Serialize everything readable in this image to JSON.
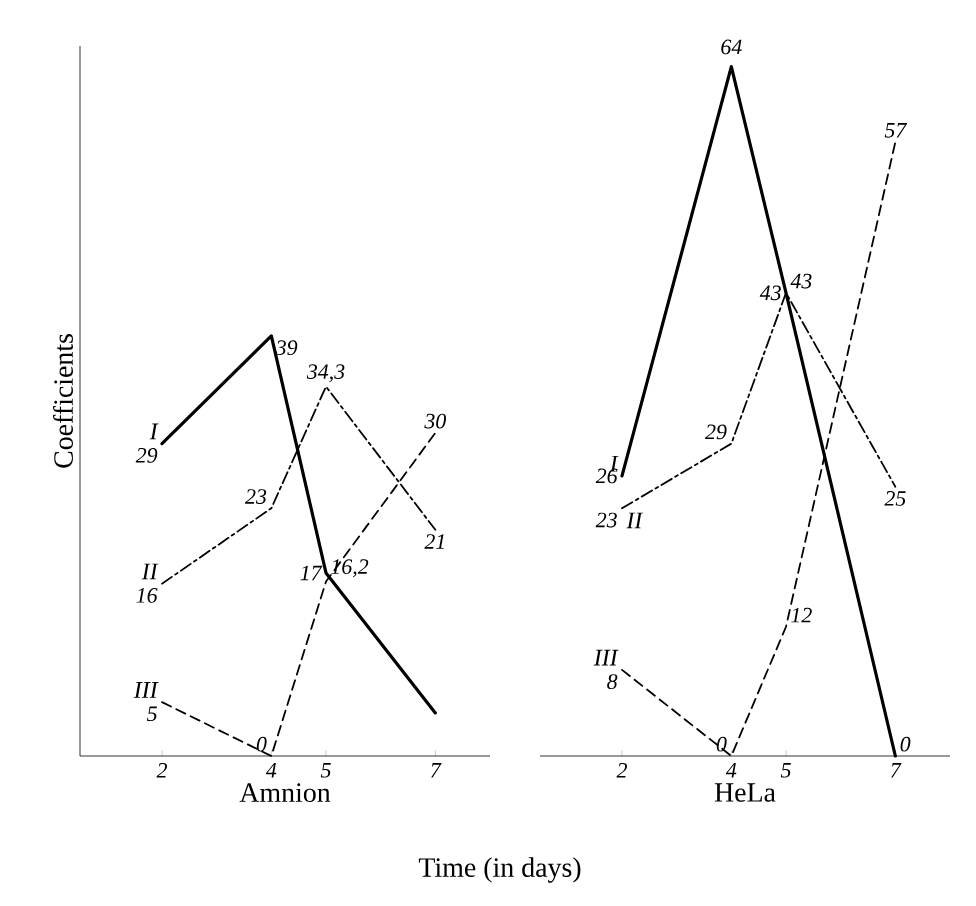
{
  "chart_data": [
    {
      "type": "line",
      "xlabel": "Amnion",
      "ylabel": "Coefficients",
      "x": [
        2,
        4,
        5,
        7
      ],
      "xlim": [
        0.5,
        8
      ],
      "xticks": [
        2,
        4,
        5,
        7
      ],
      "tick_labels": "x",
      "grid": false,
      "legend": false,
      "marker": "none",
      "annotations": [
        "Time (in days)"
      ],
      "series": [
        {
          "name": "I",
          "color": "#000000",
          "line_style": "solid",
          "values": [
            29,
            39,
            17,
            4
          ],
          "value_labels": [
            "29",
            "39",
            "17",
            null
          ]
        },
        {
          "name": "II",
          "color": "#000000",
          "line_style": "dashdot",
          "values": [
            16,
            23,
            34.3,
            21
          ],
          "value_labels": [
            "16",
            "23",
            "34,3",
            "21"
          ]
        },
        {
          "name": "III",
          "color": "#000000",
          "line_style": "dashed",
          "values": [
            5,
            0,
            16.2,
            30
          ],
          "value_labels": [
            "5",
            "0",
            "16,2",
            "30"
          ]
        }
      ]
    },
    {
      "type": "line",
      "xlabel": "HeLa",
      "x": [
        2,
        4,
        5,
        7
      ],
      "xlim": [
        0.5,
        8
      ],
      "xticks": [
        2,
        4,
        5,
        7
      ],
      "tick_labels": "x",
      "grid": false,
      "legend": false,
      "marker": "none",
      "series": [
        {
          "name": "I",
          "color": "#000000",
          "line_style": "solid",
          "values": [
            26,
            64,
            43,
            0
          ],
          "value_labels": [
            "26",
            "64",
            "43",
            "0"
          ]
        },
        {
          "name": "II",
          "color": "#000000",
          "line_style": "dashdot",
          "values": [
            23,
            29,
            43,
            25
          ],
          "value_labels": [
            "23",
            "29",
            "43",
            "25"
          ]
        },
        {
          "name": "III",
          "color": "#000000",
          "line_style": "dashed",
          "values": [
            8,
            0,
            12,
            57
          ],
          "value_labels": [
            "8",
            "0",
            "12",
            "57"
          ]
        }
      ]
    }
  ]
}
